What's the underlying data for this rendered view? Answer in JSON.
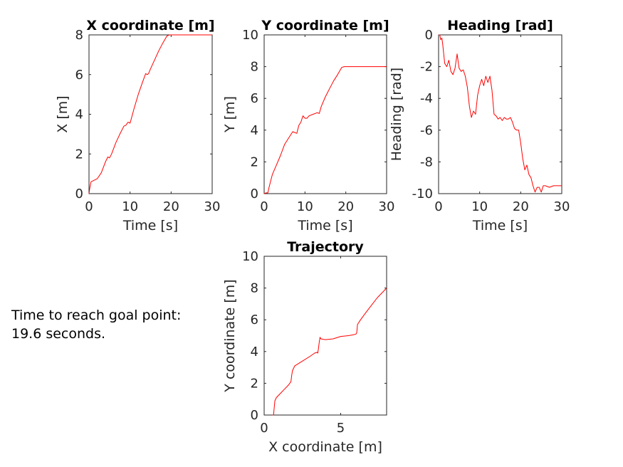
{
  "annotation": {
    "line1": "Time to reach goal point:",
    "line2": "19.6 seconds."
  },
  "colors": {
    "series": "#ff0000",
    "axes": "#262626"
  },
  "chart_data": [
    {
      "id": "x-coordinate",
      "type": "line",
      "title": "X coordinate [m]",
      "xlabel": "Time [s]",
      "ylabel": "X [m]",
      "xlim": [
        0,
        30
      ],
      "ylim": [
        0,
        8
      ],
      "xticks": [
        0,
        10,
        20,
        30
      ],
      "yticks": [
        0,
        2,
        4,
        6,
        8
      ],
      "grid": false,
      "series": [
        {
          "color": "#ff0000",
          "x": [
            0,
            0.2,
            0.5,
            1.0,
            2.0,
            3.0,
            4.0,
            4.6,
            5.0,
            5.5,
            6.5,
            7.5,
            8.5,
            9.0,
            9.5,
            10.0,
            11.0,
            12.0,
            13.0,
            13.8,
            14.2,
            14.5,
            15.0,
            16.0,
            17.0,
            18.0,
            19.0,
            19.6,
            20.0,
            25.0,
            30.0
          ],
          "y": [
            0,
            0.3,
            0.6,
            0.65,
            0.75,
            1.05,
            1.6,
            1.85,
            1.8,
            2.0,
            2.55,
            3.0,
            3.4,
            3.45,
            3.6,
            3.55,
            4.3,
            5.0,
            5.6,
            6.05,
            6.0,
            6.05,
            6.3,
            6.75,
            7.2,
            7.6,
            7.95,
            8.0,
            8.0,
            8.0,
            8.0
          ]
        }
      ]
    },
    {
      "id": "y-coordinate",
      "type": "line",
      "title": "Y coordinate [m]",
      "xlabel": "Time [s]",
      "ylabel": "Y [m]",
      "xlim": [
        0,
        30
      ],
      "ylim": [
        0,
        10
      ],
      "xticks": [
        0,
        10,
        20,
        30
      ],
      "yticks": [
        0,
        2,
        4,
        6,
        8,
        10
      ],
      "grid": false,
      "series": [
        {
          "color": "#ff0000",
          "x": [
            0,
            0.5,
            0.9,
            1.2,
            2.0,
            3.0,
            4.0,
            5.0,
            6.0,
            7.0,
            8.0,
            8.5,
            9.0,
            9.5,
            10.0,
            10.5,
            11.0,
            12.0,
            13.0,
            13.5,
            14.0,
            15.0,
            16.0,
            17.0,
            18.0,
            19.0,
            19.6,
            20.0,
            25.0,
            30.0
          ],
          "y": [
            0,
            0.05,
            0.05,
            0.4,
            1.2,
            1.8,
            2.4,
            3.1,
            3.5,
            3.9,
            3.8,
            4.3,
            4.5,
            4.9,
            4.75,
            4.75,
            4.9,
            5.0,
            5.1,
            5.05,
            5.5,
            6.1,
            6.6,
            7.1,
            7.5,
            7.95,
            8.0,
            8.0,
            8.0,
            8.0
          ]
        }
      ]
    },
    {
      "id": "heading",
      "type": "line",
      "title": "Heading [rad]",
      "xlabel": "Time [s]",
      "ylabel": "Heading [rad]",
      "xlim": [
        0,
        30
      ],
      "ylim": [
        -10,
        0
      ],
      "xticks": [
        0,
        10,
        20,
        30
      ],
      "yticks": [
        0,
        -2,
        -4,
        -6,
        -8,
        -10
      ],
      "grid": false,
      "series": [
        {
          "color": "#ff0000",
          "x": [
            0,
            0.3,
            0.5,
            0.8,
            1.0,
            1.5,
            2.0,
            2.5,
            3.0,
            3.5,
            4.0,
            4.5,
            5.0,
            5.5,
            6.0,
            6.5,
            7.0,
            7.5,
            8.0,
            8.5,
            9.0,
            9.5,
            10.0,
            10.5,
            11.0,
            11.5,
            12.0,
            12.5,
            13.0,
            13.5,
            14.0,
            14.5,
            15.0,
            15.5,
            16.0,
            16.5,
            17.0,
            17.5,
            18.0,
            18.5,
            19.0,
            19.5,
            20.0,
            20.5,
            21.0,
            21.5,
            22.0,
            22.5,
            23.0,
            23.5,
            24.0,
            24.5,
            25.0,
            25.5,
            26.0,
            27.0,
            28.0,
            29.0,
            30.0
          ],
          "y": [
            0,
            0,
            -0.3,
            -0.2,
            -0.6,
            -1.8,
            -2.0,
            -1.6,
            -2.3,
            -2.5,
            -2.1,
            -1.2,
            -2.1,
            -2.3,
            -2.2,
            -2.6,
            -3.3,
            -4.5,
            -5.2,
            -4.8,
            -5.0,
            -3.8,
            -3.2,
            -2.8,
            -3.2,
            -2.6,
            -3.0,
            -2.6,
            -3.5,
            -5.0,
            -5.1,
            -5.3,
            -5.2,
            -5.4,
            -5.2,
            -5.3,
            -5.3,
            -5.2,
            -5.5,
            -5.9,
            -6.0,
            -6.0,
            -6.8,
            -7.8,
            -8.5,
            -8.2,
            -8.8,
            -9.0,
            -9.5,
            -9.9,
            -9.6,
            -9.6,
            -9.9,
            -9.5,
            -9.5,
            -9.6,
            -9.5,
            -9.5,
            -9.5
          ]
        }
      ]
    },
    {
      "id": "trajectory",
      "type": "line",
      "title": "Trajectory",
      "xlabel": "X coordinate [m]",
      "ylabel": "Y coordinate [m]",
      "xlim": [
        0,
        8
      ],
      "ylim": [
        0,
        10
      ],
      "xticks": [
        0,
        5
      ],
      "yticks": [
        0,
        2,
        4,
        6,
        8,
        10
      ],
      "grid": false,
      "series": [
        {
          "color": "#ff0000",
          "x": [
            0.55,
            0.6,
            0.62,
            0.65,
            0.7,
            0.8,
            1.0,
            1.3,
            1.6,
            1.75,
            1.8,
            1.85,
            2.0,
            2.5,
            3.0,
            3.3,
            3.45,
            3.5,
            3.55,
            3.6,
            3.65,
            3.7,
            4.0,
            4.5,
            5.0,
            5.5,
            5.8,
            6.0,
            6.05,
            6.1,
            6.3,
            6.6,
            7.0,
            7.4,
            7.8,
            8.0
          ],
          "y": [
            0.0,
            0.0,
            0.05,
            0.4,
            0.9,
            1.1,
            1.3,
            1.6,
            1.9,
            2.1,
            2.5,
            2.8,
            3.1,
            3.4,
            3.7,
            3.9,
            3.95,
            3.9,
            4.2,
            4.6,
            4.9,
            4.8,
            4.75,
            4.8,
            4.95,
            5.0,
            5.05,
            5.1,
            5.2,
            5.7,
            6.0,
            6.4,
            6.9,
            7.4,
            7.8,
            8.0
          ]
        }
      ]
    }
  ]
}
